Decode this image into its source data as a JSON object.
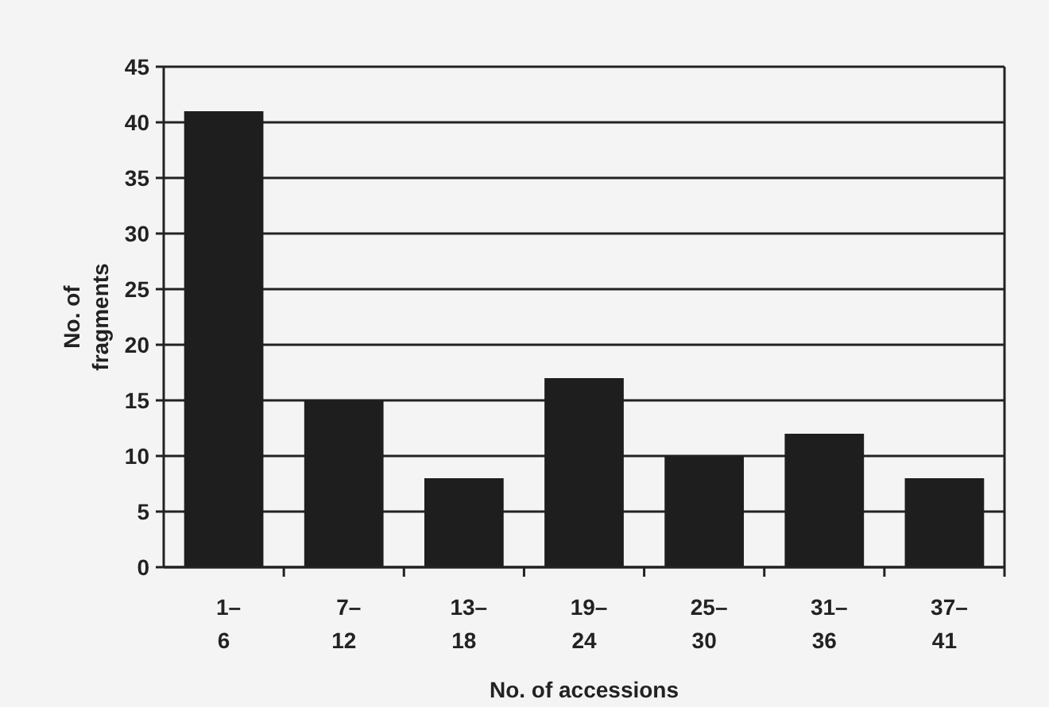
{
  "chart_data": {
    "type": "bar",
    "xlabel": "No. of accessions",
    "ylabel": "No. of fragments",
    "categories": [
      "1–6",
      "7–12",
      "13–18",
      "19–24",
      "25–30",
      "31–36",
      "37–41"
    ],
    "values": [
      41,
      15,
      8,
      17,
      10,
      12,
      8
    ],
    "color": "#1e1e1e",
    "ylim": [
      0,
      45
    ],
    "yticks": [
      0,
      5,
      10,
      15,
      20,
      25,
      30,
      35,
      40,
      45
    ],
    "grid": "y"
  }
}
